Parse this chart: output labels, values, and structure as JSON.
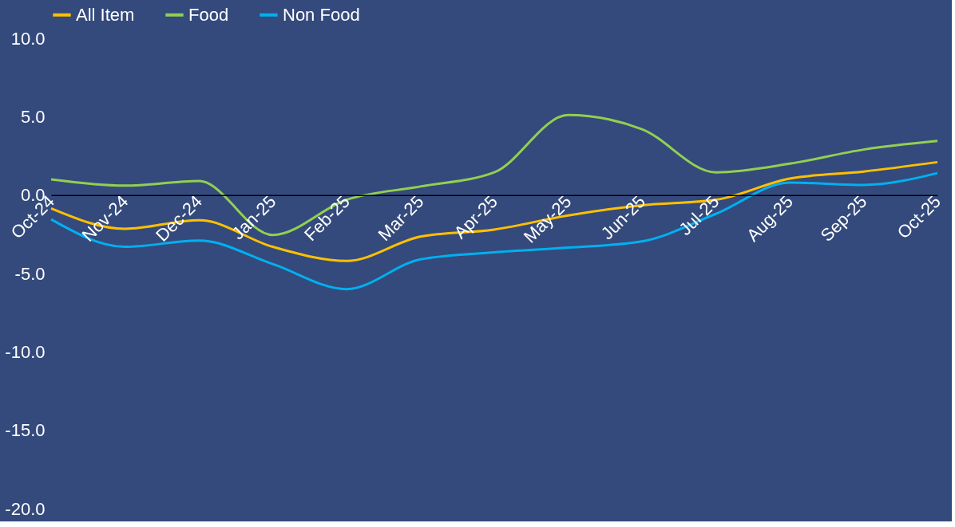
{
  "chart_data": {
    "type": "line",
    "categories": [
      "Oct-24",
      "Nov-24",
      "Dec-24",
      "Jan-25",
      "Feb-25",
      "Mar-25",
      "Apr-25",
      "May-25",
      "Jun-25",
      "Jul-25",
      "Aug-25",
      "Sep-25",
      "Oct-25"
    ],
    "series": [
      {
        "name": "All Item",
        "color": "#ffc000",
        "values": [
          -0.85,
          -2.15,
          -1.6,
          -3.3,
          -4.2,
          -2.65,
          -2.2,
          -1.3,
          -0.65,
          -0.3,
          1.05,
          1.5,
          2.1
        ]
      },
      {
        "name": "Food",
        "color": "#92d050",
        "values": [
          1.0,
          0.6,
          0.9,
          -2.55,
          -0.3,
          0.55,
          1.45,
          5.1,
          4.2,
          1.45,
          2.0,
          2.9,
          3.45
        ]
      },
      {
        "name": "Non Food",
        "color": "#00b0f0",
        "values": [
          -1.55,
          -3.3,
          -2.9,
          -4.4,
          -6.0,
          -4.1,
          -3.65,
          -3.35,
          -2.95,
          -1.2,
          0.8,
          0.65,
          1.4
        ]
      }
    ],
    "ylim": [
      -20,
      10
    ],
    "yticks": [
      {
        "value": -20,
        "label": "-20.0"
      },
      {
        "value": -15,
        "label": "-15.0"
      },
      {
        "value": -10,
        "label": "-10.0"
      },
      {
        "value": -5,
        "label": "-5.0"
      },
      {
        "value": 0,
        "label": "0.0"
      },
      {
        "value": 5,
        "label": "5.0"
      },
      {
        "value": 10,
        "label": "10.0"
      }
    ],
    "grid": false,
    "legend": "top",
    "marker": "none",
    "line_style": "solid"
  }
}
